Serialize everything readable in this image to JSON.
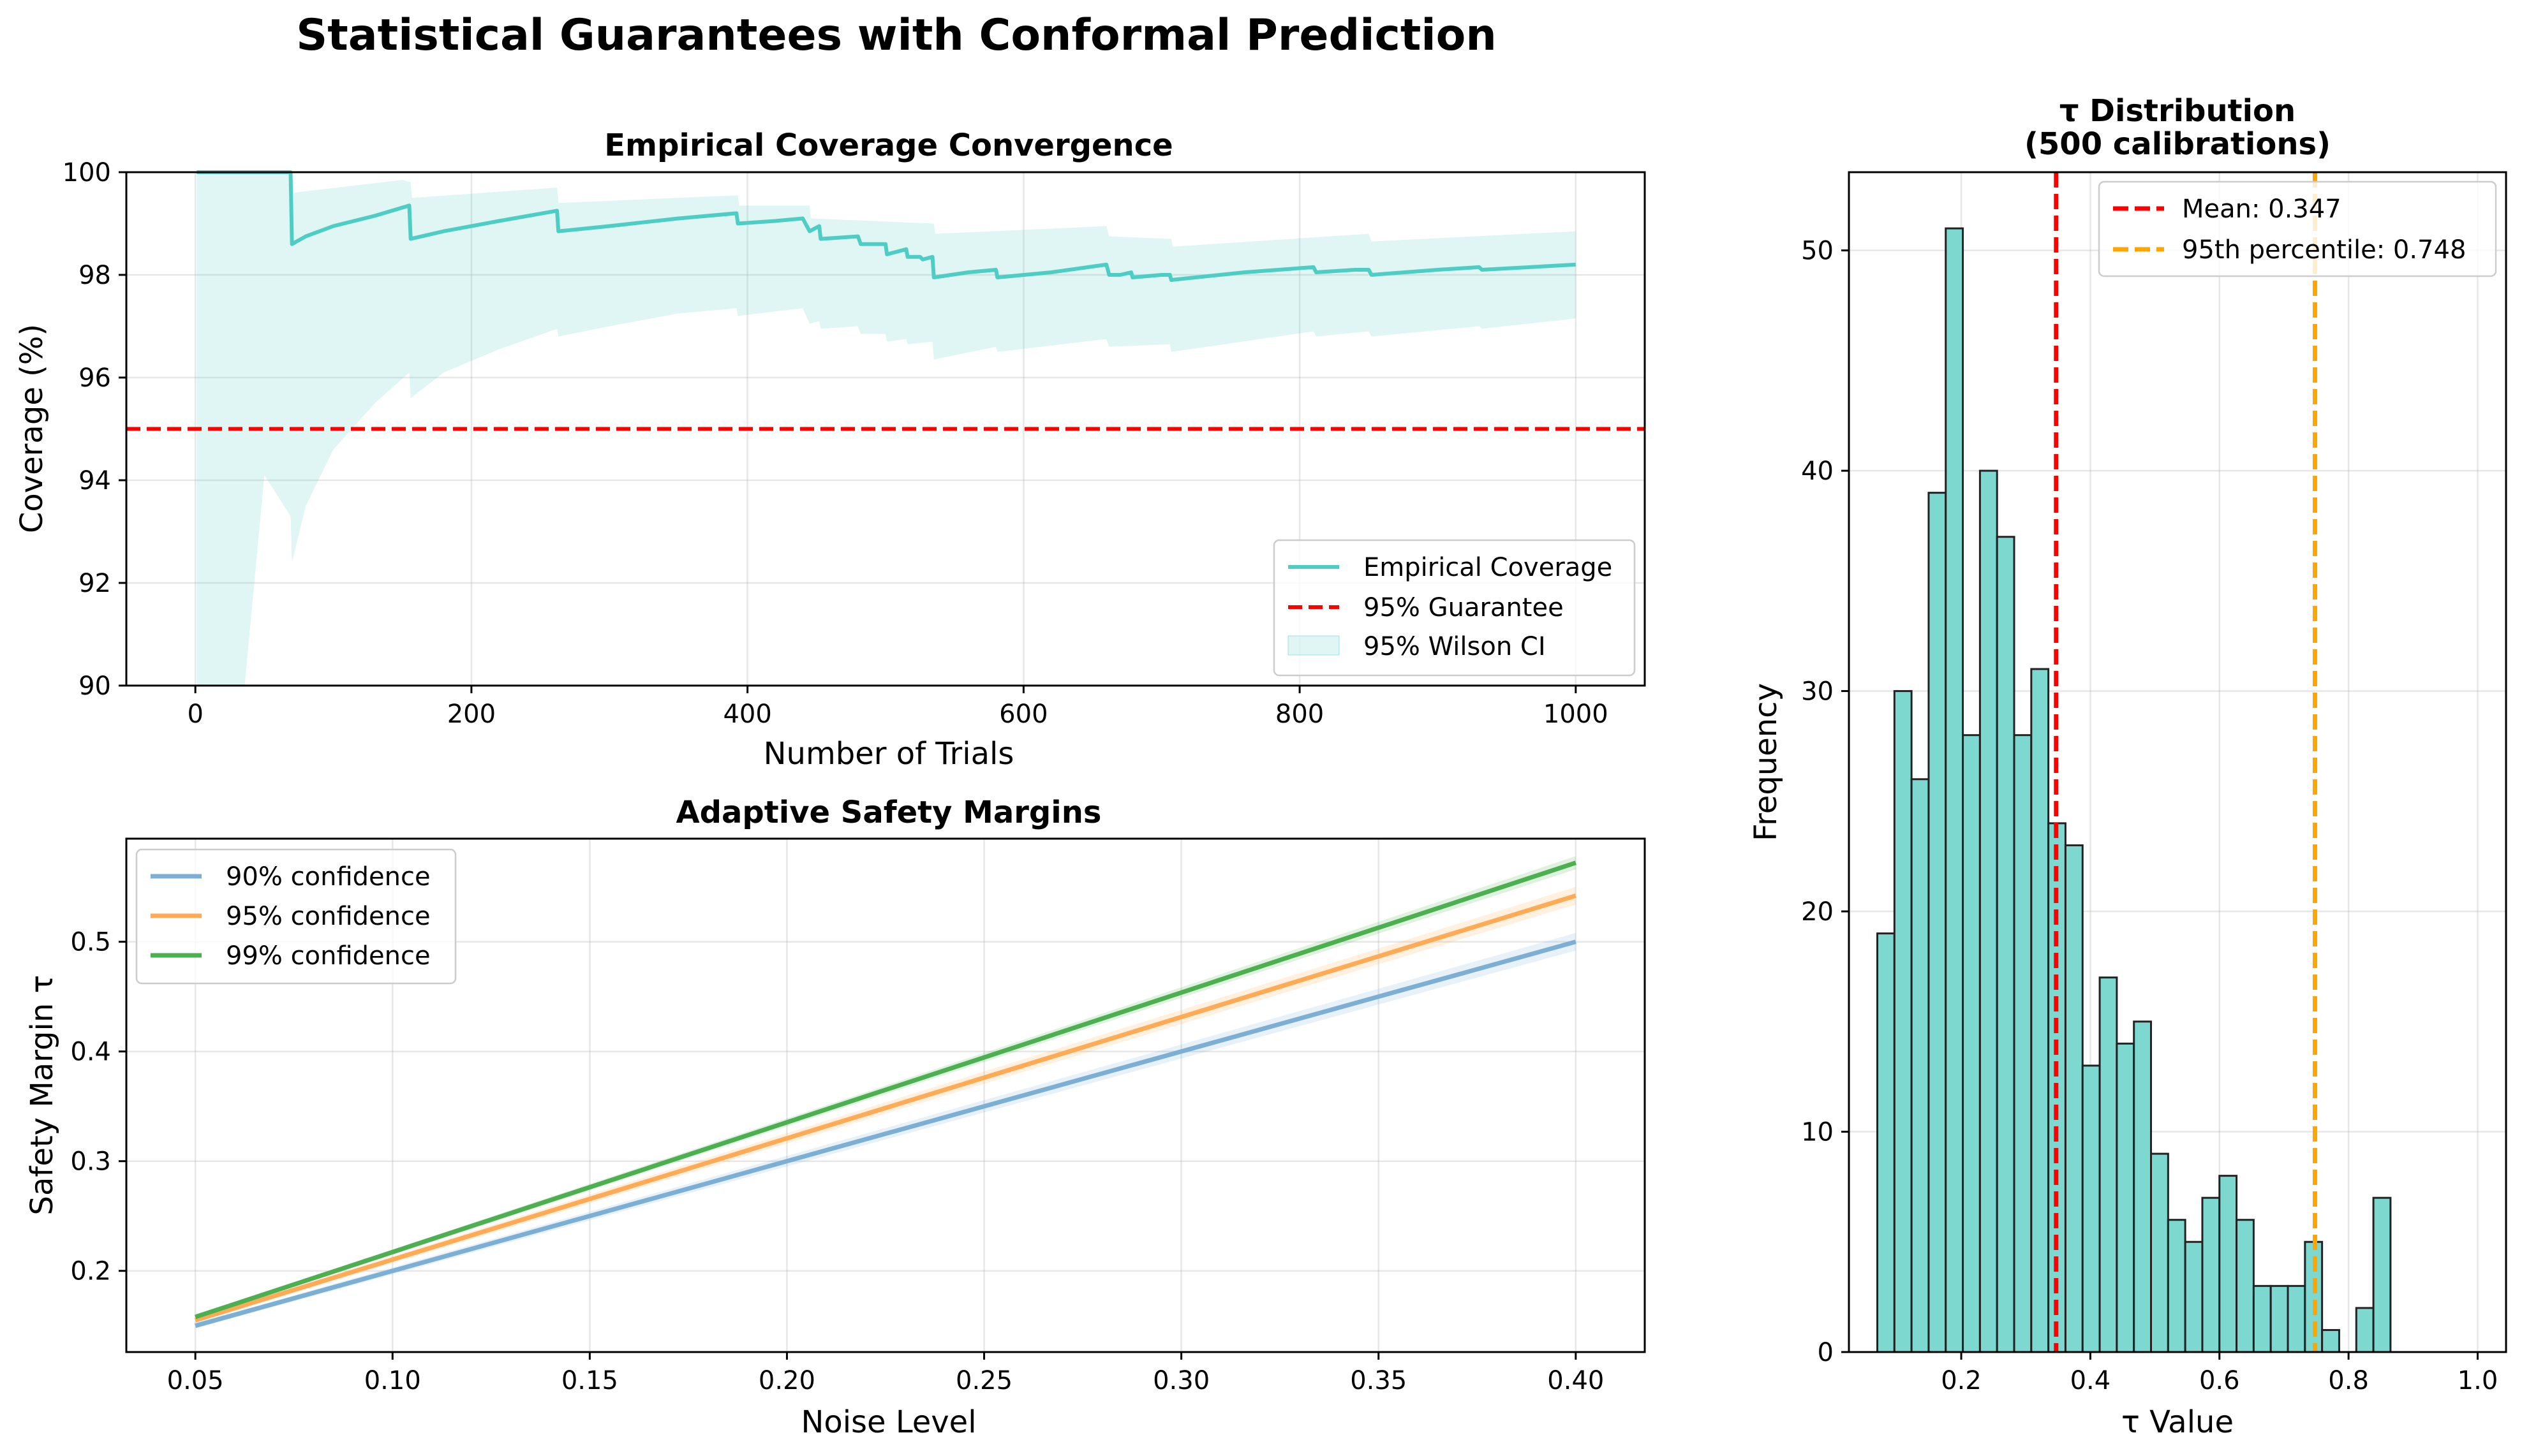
{
  "figure": {
    "title": "Statistical Guarantees with Conformal Prediction"
  },
  "colors": {
    "teal": "#4ecdc4",
    "red": "#ff0000",
    "orange": "#ffa500",
    "blue90": "#7bafd4",
    "orange95": "#ffaa55",
    "green99": "#4caf50",
    "hist": "#7dd8d0"
  },
  "chart_data": [
    {
      "id": "coverage",
      "type": "line",
      "title": "Empirical Coverage Convergence",
      "xlabel": "Number of Trials",
      "ylabel": "Coverage (%)",
      "xlim": [
        -50,
        1050
      ],
      "ylim": [
        90,
        100
      ],
      "xticks": [
        0,
        200,
        400,
        600,
        800,
        1000
      ],
      "yticks": [
        90,
        92,
        94,
        96,
        98,
        100
      ],
      "grid": true,
      "legend_position": "lower-right",
      "series": [
        {
          "name": "Empirical Coverage",
          "points": [
            [
              1,
              100
            ],
            [
              69,
              100
            ],
            [
              70,
              98.6
            ],
            [
              80,
              98.75
            ],
            [
              100,
              98.95
            ],
            [
              130,
              99.15
            ],
            [
              155,
              99.35
            ],
            [
              156,
              98.7
            ],
            [
              180,
              98.85
            ],
            [
              220,
              99.05
            ],
            [
              262,
              99.25
            ],
            [
              263,
              98.85
            ],
            [
              300,
              98.95
            ],
            [
              350,
              99.1
            ],
            [
              392,
              99.2
            ],
            [
              393,
              99.0
            ],
            [
              420,
              99.05
            ],
            [
              440,
              99.1
            ],
            [
              445,
              98.85
            ],
            [
              452,
              98.95
            ],
            [
              453,
              98.7
            ],
            [
              480,
              98.75
            ],
            [
              482,
              98.6
            ],
            [
              500,
              98.6
            ],
            [
              501,
              98.4
            ],
            [
              515,
              98.5
            ],
            [
              516,
              98.35
            ],
            [
              525,
              98.35
            ],
            [
              527,
              98.3
            ],
            [
              534,
              98.35
            ],
            [
              535,
              97.95
            ],
            [
              560,
              98.05
            ],
            [
              580,
              98.1
            ],
            [
              581,
              97.95
            ],
            [
              620,
              98.05
            ],
            [
              660,
              98.2
            ],
            [
              662,
              98.0
            ],
            [
              670,
              98.0
            ],
            [
              678,
              98.05
            ],
            [
              679,
              97.95
            ],
            [
              700,
              98.0
            ],
            [
              706,
              98.0
            ],
            [
              707,
              97.9
            ],
            [
              760,
              98.05
            ],
            [
              810,
              98.15
            ],
            [
              812,
              98.05
            ],
            [
              840,
              98.1
            ],
            [
              850,
              98.1
            ],
            [
              852,
              98.0
            ],
            [
              900,
              98.1
            ],
            [
              930,
              98.15
            ],
            [
              932,
              98.1
            ],
            [
              1000,
              98.2
            ]
          ]
        },
        {
          "name": "95% Guarantee",
          "value": 95
        },
        {
          "name": "95% Wilson CI",
          "upper": [
            [
              1,
              100
            ],
            [
              70,
              100
            ],
            [
              71,
              99.6
            ],
            [
              150,
              99.85
            ],
            [
              156,
              99.8
            ],
            [
              157,
              99.5
            ],
            [
              262,
              99.7
            ],
            [
              263,
              99.4
            ],
            [
              393,
              99.55
            ],
            [
              394,
              99.35
            ],
            [
              445,
              99.35
            ],
            [
              446,
              99.1
            ],
            [
              535,
              99.0
            ],
            [
              536,
              98.8
            ],
            [
              660,
              98.95
            ],
            [
              662,
              98.75
            ],
            [
              707,
              98.7
            ],
            [
              708,
              98.55
            ],
            [
              850,
              98.8
            ],
            [
              852,
              98.65
            ],
            [
              1000,
              98.85
            ]
          ],
          "lower": [
            [
              1,
              85
            ],
            [
              10,
              86.5
            ],
            [
              20,
              88
            ],
            [
              35,
              89.8
            ],
            [
              50,
              94.1
            ],
            [
              69,
              93.3
            ],
            [
              70,
              92.4
            ],
            [
              80,
              93.5
            ],
            [
              100,
              94.6
            ],
            [
              130,
              95.5
            ],
            [
              155,
              96.1
            ],
            [
              156,
              95.6
            ],
            [
              180,
              96.1
            ],
            [
              220,
              96.55
            ],
            [
              262,
              96.95
            ],
            [
              263,
              96.8
            ],
            [
              300,
              97.0
            ],
            [
              350,
              97.25
            ],
            [
              392,
              97.35
            ],
            [
              393,
              97.2
            ],
            [
              440,
              97.35
            ],
            [
              445,
              97.05
            ],
            [
              452,
              97.1
            ],
            [
              453,
              96.95
            ],
            [
              480,
              97.0
            ],
            [
              482,
              96.85
            ],
            [
              500,
              96.85
            ],
            [
              501,
              96.7
            ],
            [
              515,
              96.75
            ],
            [
              516,
              96.65
            ],
            [
              534,
              96.7
            ],
            [
              535,
              96.35
            ],
            [
              580,
              96.6
            ],
            [
              581,
              96.5
            ],
            [
              660,
              96.75
            ],
            [
              662,
              96.6
            ],
            [
              706,
              96.65
            ],
            [
              707,
              96.5
            ],
            [
              810,
              96.9
            ],
            [
              812,
              96.8
            ],
            [
              850,
              96.9
            ],
            [
              852,
              96.8
            ],
            [
              930,
              97.0
            ],
            [
              932,
              96.95
            ],
            [
              1000,
              97.15
            ]
          ]
        }
      ]
    },
    {
      "id": "margins",
      "type": "line",
      "title": "Adaptive Safety Margins",
      "xlabel": "Noise Level",
      "ylabel": "Safety Margin τ",
      "xlim": [
        0.0325,
        0.4175
      ],
      "ylim": [
        0.126,
        0.594
      ],
      "xticks": [
        "0.05",
        "0.10",
        "0.15",
        "0.20",
        "0.25",
        "0.30",
        "0.35",
        "0.40"
      ],
      "yticks": [
        "0.2",
        "0.3",
        "0.4",
        "0.5"
      ],
      "grid": true,
      "legend_position": "upper-left",
      "series": [
        {
          "name": "90% confidence",
          "x": [
            0.05,
            0.4
          ],
          "y": [
            0.15,
            0.5
          ],
          "band": 0.008
        },
        {
          "name": "95% confidence",
          "x": [
            0.05,
            0.4
          ],
          "y": [
            0.155,
            0.542
          ],
          "band": 0.008
        },
        {
          "name": "99% confidence",
          "x": [
            0.05,
            0.4
          ],
          "y": [
            0.158,
            0.572
          ],
          "band": 0.006
        }
      ]
    },
    {
      "id": "tau_hist",
      "type": "bar",
      "title": "τ Distribution\n(500 calibrations)",
      "title_lines": [
        "τ Distribution",
        "(500 calibrations)"
      ],
      "xlabel": "τ Value",
      "ylabel": "Frequency",
      "xlim": [
        0.026,
        1.044
      ],
      "ylim": [
        0,
        53.55
      ],
      "xticks": [
        "0.2",
        "0.4",
        "0.6",
        "0.8",
        "1.0"
      ],
      "yticks": [
        "0",
        "10",
        "20",
        "30",
        "40",
        "50"
      ],
      "grid": true,
      "legend_position": "upper-right",
      "bin_start": 0.07,
      "bin_width": 0.0265,
      "counts": [
        19,
        30,
        26,
        39,
        51,
        28,
        40,
        37,
        28,
        31,
        24,
        23,
        13,
        17,
        14,
        15,
        9,
        6,
        5,
        7,
        8,
        6,
        3,
        3,
        3,
        5,
        1,
        0,
        2,
        7
      ],
      "vlines": [
        {
          "name": "Mean: 0.347",
          "value": 0.347
        },
        {
          "name": "95th percentile: 0.748",
          "value": 0.748
        }
      ]
    }
  ]
}
